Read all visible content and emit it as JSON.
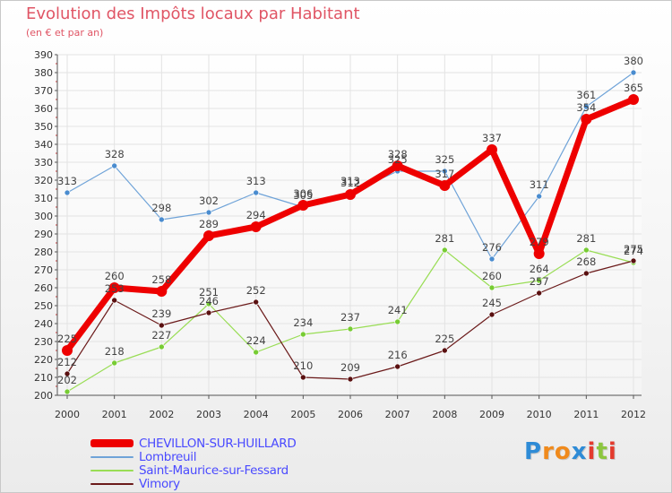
{
  "title": "Evolution des Impôts locaux par Habitant",
  "subtitle": "(en € et par an)",
  "logo_text": "Proxiti",
  "colors": {
    "CHEVILLON-SUR-HUILLARD": "#ee0000",
    "Lombreuil": "#6fa3d8",
    "Saint-Maurice-sur-Fessard": "#99dd55",
    "Vimory": "#6b1a1a",
    "grid": "#e3e3e3",
    "axis": "#555555",
    "title": "#e05565",
    "legend_text": "#4a4aff"
  },
  "chart_data": {
    "type": "line",
    "title": "Evolution des Impôts locaux par Habitant",
    "subtitle": "(en € et par an)",
    "xlabel": "",
    "ylabel": "",
    "x": [
      "2000",
      "2001",
      "2002",
      "2003",
      "2004",
      "2005",
      "2006",
      "2007",
      "2008",
      "2009",
      "2010",
      "2011",
      "2012"
    ],
    "ylim": [
      200,
      390
    ],
    "yticks": [
      200,
      210,
      220,
      230,
      240,
      250,
      260,
      270,
      280,
      290,
      300,
      310,
      320,
      330,
      340,
      350,
      360,
      370,
      380,
      390
    ],
    "grid": true,
    "legend_position": "bottom-left",
    "series": [
      {
        "name": "CHEVILLON-SUR-HUILLARD",
        "values": [
          225,
          260,
          258,
          289,
          294,
          306,
          312,
          328,
          317,
          337,
          279,
          354,
          365
        ],
        "labels": [
          "225",
          "260",
          "258",
          "289",
          "294",
          "306",
          "312",
          "328",
          "317",
          "337",
          "279",
          "354",
          "365"
        ]
      },
      {
        "name": "Lombreuil",
        "values": [
          313,
          328,
          298,
          302,
          313,
          305,
          313,
          325,
          325,
          276,
          311,
          361,
          380
        ],
        "labels": [
          "313",
          "328",
          "298",
          "302",
          "313",
          "305",
          "313",
          "325",
          "325",
          "276",
          "311",
          "361",
          "380"
        ]
      },
      {
        "name": "Saint-Maurice-sur-Fessard",
        "values": [
          202,
          218,
          227,
          251,
          224,
          234,
          237,
          241,
          281,
          260,
          264,
          281,
          274
        ],
        "labels": [
          "202",
          "218",
          "227",
          "251",
          "224",
          "234",
          "237",
          "241",
          "281",
          "260",
          "264",
          "281",
          "274"
        ]
      },
      {
        "name": "Vimory",
        "values": [
          212,
          253,
          239,
          246,
          252,
          210,
          209,
          216,
          225,
          245,
          257,
          268,
          275
        ],
        "labels": [
          "212",
          "253",
          "239",
          "246",
          "252",
          "210",
          "209",
          "216",
          "225",
          "245",
          "257",
          "268",
          "275"
        ]
      }
    ]
  }
}
